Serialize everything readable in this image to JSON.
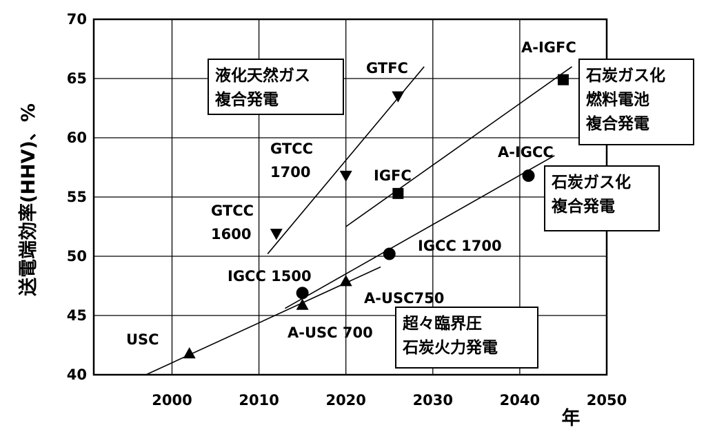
{
  "chart_data": {
    "type": "scatter",
    "xlabel": "年",
    "ylabel": "送電端効率(HHV)、%",
    "xlim": [
      1991,
      2050
    ],
    "ylim": [
      40,
      70
    ],
    "xticks": [
      2000,
      2010,
      2020,
      2030,
      2040,
      2050
    ],
    "yticks": [
      40,
      45,
      50,
      55,
      60,
      65,
      70
    ],
    "grid": true,
    "points": [
      {
        "label": "USC",
        "x": 2002,
        "y": 41.8,
        "marker": "triangle-up"
      },
      {
        "label": "A-USC 700",
        "x": 2015,
        "y": 45.9,
        "marker": "triangle-up"
      },
      {
        "label": "A-USC750",
        "x": 2020,
        "y": 47.9,
        "marker": "triangle-up"
      },
      {
        "label": "IGCC 1500",
        "x": 2015,
        "y": 46.9,
        "marker": "circle"
      },
      {
        "label": "IGCC 1700",
        "x": 2025,
        "y": 50.2,
        "marker": "circle"
      },
      {
        "label": "A-IGCC",
        "x": 2041,
        "y": 56.8,
        "marker": "circle"
      },
      {
        "label": "GTCC\n1600",
        "x": 2012,
        "y": 51.9,
        "marker": "triangle-down"
      },
      {
        "label": "GTCC\n1700",
        "x": 2020,
        "y": 56.8,
        "marker": "triangle-down"
      },
      {
        "label": "GTFC",
        "x": 2026,
        "y": 63.5,
        "marker": "triangle-down"
      },
      {
        "label": "IGFC",
        "x": 2026,
        "y": 55.3,
        "marker": "square"
      },
      {
        "label": "A-IGFC",
        "x": 2045,
        "y": 64.9,
        "marker": "square"
      }
    ],
    "trend_lines": [
      {
        "group": "超々臨界圧石炭火力発電",
        "x": [
          1997,
          2024
        ],
        "y": [
          40,
          49.1
        ]
      },
      {
        "group": "石炭ガス化複合発電",
        "x": [
          2013,
          2044
        ],
        "y": [
          45.6,
          58.5
        ]
      },
      {
        "group": "液化天然ガス複合発電",
        "x": [
          2011,
          2029
        ],
        "y": [
          50.2,
          66
        ]
      },
      {
        "group": "石炭ガス化燃料電池複合発電",
        "x": [
          2020,
          2046
        ],
        "y": [
          52.5,
          66
        ]
      }
    ],
    "annotations": [
      {
        "text": "液化天然ガス\n複合発電"
      },
      {
        "text": "石炭ガス化\n燃料電池\n複合発電"
      },
      {
        "text": "石炭ガス化\n複合発電"
      },
      {
        "text": "超々臨界圧\n石炭火力発電"
      }
    ]
  }
}
